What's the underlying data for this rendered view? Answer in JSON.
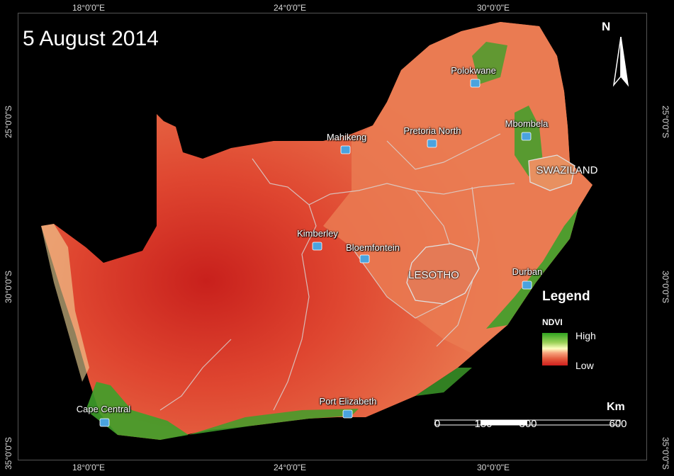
{
  "map_title": "5 August 2014",
  "graticule": {
    "top": [
      "18°0'0\"E",
      "24°0'0\"E",
      "30°0'0\"E"
    ],
    "bottom": [
      "18°0'0\"E",
      "24°0'0\"E",
      "30°0'0\"E"
    ],
    "left": [
      "25°0'0\"S",
      "30°0'0\"S",
      "35°0'0\"S"
    ],
    "right": [
      "25°0'0\"S",
      "30°0'0\"S",
      "35°0'0\"S"
    ]
  },
  "cities": [
    "Polokwane",
    "Mahikeng",
    "Pretoria North",
    "Mbombela",
    "Kimberley",
    "Bloemfontein",
    "Durban",
    "Cape Central",
    "Port Elizabeth"
  ],
  "countries": [
    "SWAZILAND",
    "LESOTHO"
  ],
  "legend": {
    "title": "Legend",
    "field": "NDVI",
    "high": "High",
    "low": "Low",
    "colors": {
      "high": "#2fa320",
      "mid": "#ffffc0",
      "low": "#d01f1f"
    }
  },
  "scale_bar": {
    "unit": "Km",
    "labels": [
      "0",
      "150",
      "300",
      "600"
    ]
  },
  "north_arrow": "N",
  "icons": {
    "city_marker": "city-marker-icon",
    "north": "north-arrow-icon"
  }
}
